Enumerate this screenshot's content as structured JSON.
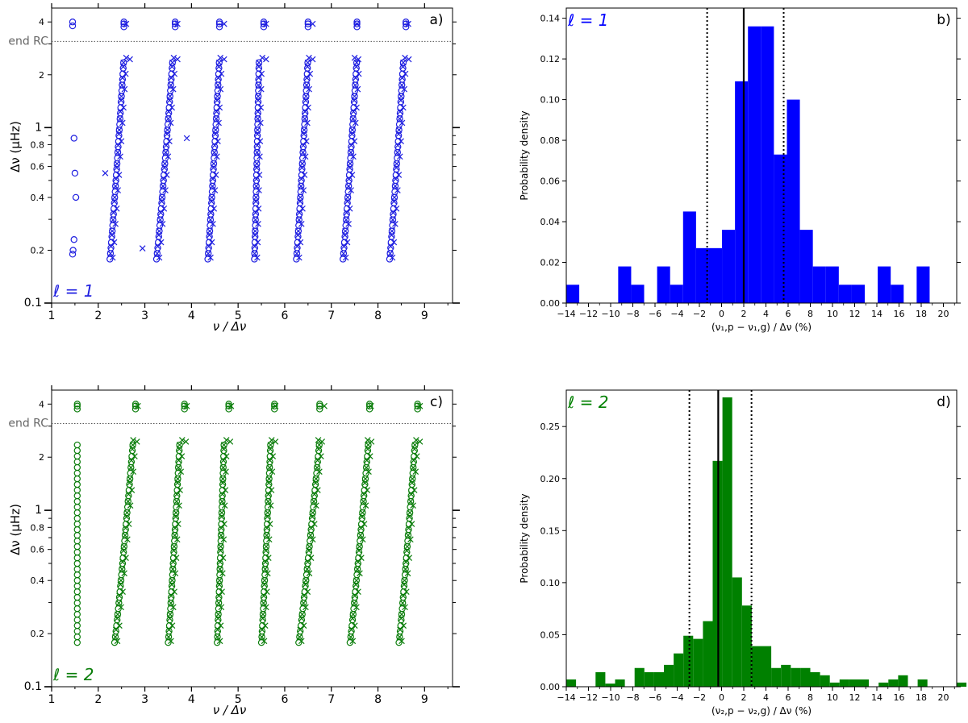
{
  "chart_data": [
    {
      "panel": "a)",
      "type": "scatter",
      "xlabel": "ν / Δν",
      "ylabel": "Δν (μHz)",
      "xlim": [
        1,
        9.6
      ],
      "ylim": [
        0.1,
        4.8
      ],
      "yscale": "log",
      "xticks": [
        1,
        2,
        3,
        4,
        5,
        6,
        7,
        8,
        9
      ],
      "yticks_major": [
        0.1,
        1
      ],
      "yticks_minor": [
        0.2,
        0.4,
        0.6,
        0.8,
        2,
        4
      ],
      "ytick_labels": [
        "0.1",
        "0.2",
        "0.4",
        "0.6",
        "0.8",
        "1",
        "2",
        "4"
      ],
      "hline": {
        "y": 3.1,
        "style": "dotted",
        "label": "end RC"
      },
      "annotation": "ℓ = 1",
      "color": "#1f1fe0",
      "ridges": [
        {
          "circles": [
            [
              1.45,
              3.8
            ],
            [
              1.45,
              4.0
            ],
            [
              1.48,
              0.87
            ],
            [
              1.5,
              0.55
            ],
            [
              1.52,
              0.4
            ],
            [
              1.48,
              0.23
            ],
            [
              1.46,
              0.2
            ],
            [
              1.45,
              0.19
            ]
          ],
          "crosses": [
            [
              2.15,
              0.55
            ],
            [
              2.95,
              0.205
            ],
            [
              3.9,
              0.87
            ]
          ]
        },
        {
          "base": 2.25,
          "top": 2.55,
          "circles_x": [
            2.55,
            2.6
          ],
          "crosses_x": [
            2.6,
            2.6
          ]
        },
        {
          "base": 3.25,
          "top": 3.6,
          "circles_x": [
            3.65,
            3.68
          ],
          "crosses_x": [
            3.7,
            3.62
          ]
        },
        {
          "base": 4.35,
          "top": 4.6,
          "circles_x": [
            4.6,
            4.65
          ],
          "crosses_x": [
            4.7,
            4.62
          ]
        },
        {
          "base": 5.35,
          "top": 5.45,
          "circles_x": [
            5.55,
            5.6
          ],
          "crosses_x": [
            5.6,
            5.52
          ]
        },
        {
          "base": 6.25,
          "top": 6.5,
          "circles_x": [
            6.5,
            6.55
          ],
          "crosses_x": [
            6.6,
            6.52
          ]
        },
        {
          "base": 7.25,
          "top": 7.55,
          "circles_x": [
            7.55,
            7.6
          ],
          "crosses_x": [
            7.55,
            7.5
          ]
        },
        {
          "base": 8.25,
          "top": 8.55,
          "circles_x": [
            8.6,
            8.65
          ],
          "crosses_x": [
            8.65,
            8.58
          ]
        }
      ]
    },
    {
      "panel": "b)",
      "type": "bar",
      "xlabel": "(ν₁,p − ν₁,g) / Δν (%)",
      "ylabel": "Probability density",
      "xlim": [
        -14,
        21.2
      ],
      "ylim": [
        0,
        0.145
      ],
      "xticks": [
        -14,
        -12,
        -10,
        -8,
        -6,
        -4,
        -2,
        0,
        2,
        4,
        6,
        8,
        10,
        12,
        14,
        16,
        18,
        20
      ],
      "yticks": [
        0,
        0.02,
        0.04,
        0.06,
        0.08,
        0.1,
        0.12,
        0.14
      ],
      "ytick_labels": [
        "0.00",
        "0.02",
        "0.04",
        "0.06",
        "0.08",
        "0.10",
        "0.12",
        "0.14"
      ],
      "annotation": "ℓ = 1",
      "color": "#0000ff",
      "bin_width": 1.17,
      "bin_start": -14,
      "values": [
        0.009,
        0,
        0,
        0,
        0.018,
        0.009,
        0,
        0.018,
        0.009,
        0.045,
        0.027,
        0.027,
        0.036,
        0.109,
        0.136,
        0.136,
        0.073,
        0.1,
        0.036,
        0.018,
        0.018,
        0.009,
        0.009,
        0,
        0.018,
        0.009,
        0,
        0.018,
        0,
        0,
        0,
        0.009,
        0.009,
        0.009,
        0,
        0.018
      ],
      "vlines": {
        "solid": 2.0,
        "dotted": [
          -1.3,
          5.6
        ]
      }
    },
    {
      "panel": "c)",
      "type": "scatter",
      "xlabel": "ν / Δν",
      "ylabel": "Δν (μHz)",
      "xlim": [
        1,
        9.6
      ],
      "ylim": [
        0.1,
        4.8
      ],
      "yscale": "log",
      "xticks": [
        1,
        2,
        3,
        4,
        5,
        6,
        7,
        8,
        9
      ],
      "yticks_major": [
        0.1,
        1
      ],
      "yticks_minor": [
        0.2,
        0.4,
        0.6,
        0.8,
        2,
        4
      ],
      "ytick_labels": [
        "0.1",
        "0.2",
        "0.4",
        "0.6",
        "0.8",
        "1",
        "2",
        "4"
      ],
      "hline": {
        "y": 3.1,
        "style": "dotted",
        "label": "end RC"
      },
      "annotation": "ℓ = 2",
      "color": "#0a7d0a",
      "ridges": [
        {
          "base": 1.55,
          "top": 1.55,
          "circles_x": [
            1.55,
            1.55
          ],
          "crosses_x": [],
          "straight": true
        },
        {
          "base": 2.35,
          "top": 2.75,
          "circles_x": [
            2.8,
            2.82
          ],
          "crosses_x": [
            2.85,
            2.75
          ]
        },
        {
          "base": 3.5,
          "top": 3.75,
          "circles_x": [
            3.85,
            3.9
          ],
          "crosses_x": [
            3.9,
            3.8
          ]
        },
        {
          "base": 4.55,
          "top": 4.7,
          "circles_x": [
            4.8,
            4.85
          ],
          "crosses_x": [
            4.85,
            4.75
          ]
        },
        {
          "base": 5.5,
          "top": 5.7,
          "circles_x": [
            5.78,
            5.8
          ],
          "crosses_x": [
            5.8,
            5.72
          ]
        },
        {
          "base": 6.3,
          "top": 6.75,
          "circles_x": [
            6.75,
            6.78
          ],
          "crosses_x": [
            6.85,
            6.72
          ]
        },
        {
          "base": 7.4,
          "top": 7.8,
          "circles_x": [
            7.82,
            7.85
          ],
          "crosses_x": [
            7.85,
            7.78
          ]
        },
        {
          "base": 8.45,
          "top": 8.8,
          "circles_x": [
            8.85,
            8.88
          ],
          "crosses_x": [
            8.9,
            8.82
          ]
        }
      ]
    },
    {
      "panel": "d)",
      "type": "bar",
      "xlabel": "(ν₂,p − ν₂,g) / Δν (%)",
      "ylabel": "Probability density",
      "xlim": [
        -14,
        21.2
      ],
      "ylim": [
        0,
        0.285
      ],
      "xticks": [
        -14,
        -12,
        -10,
        -8,
        -6,
        -4,
        -2,
        0,
        2,
        4,
        6,
        8,
        10,
        12,
        14,
        16,
        18,
        20
      ],
      "yticks": [
        0,
        0.05,
        0.1,
        0.15,
        0.2,
        0.25
      ],
      "ytick_labels": [
        "0.00",
        "0.05",
        "0.10",
        "0.15",
        "0.20",
        "0.25"
      ],
      "annotation": "ℓ = 2",
      "color": "#008000",
      "bin_width": 0.88,
      "bin_start": -14,
      "values": [
        0.007,
        0,
        0,
        0.014,
        0.003,
        0.007,
        0,
        0.018,
        0.014,
        0.014,
        0.021,
        0.032,
        0.049,
        0.046,
        0.063,
        0.217,
        0.278,
        0.105,
        0.078,
        0.039,
        0.039,
        0.018,
        0.021,
        0.018,
        0.018,
        0.014,
        0.011,
        0.004,
        0.007,
        0.007,
        0.007,
        0,
        0.004,
        0.007,
        0.011,
        0,
        0.007,
        0,
        0,
        0,
        0.004
      ],
      "vlines": {
        "solid": -0.3,
        "dotted": [
          -2.9,
          2.7
        ]
      }
    }
  ]
}
